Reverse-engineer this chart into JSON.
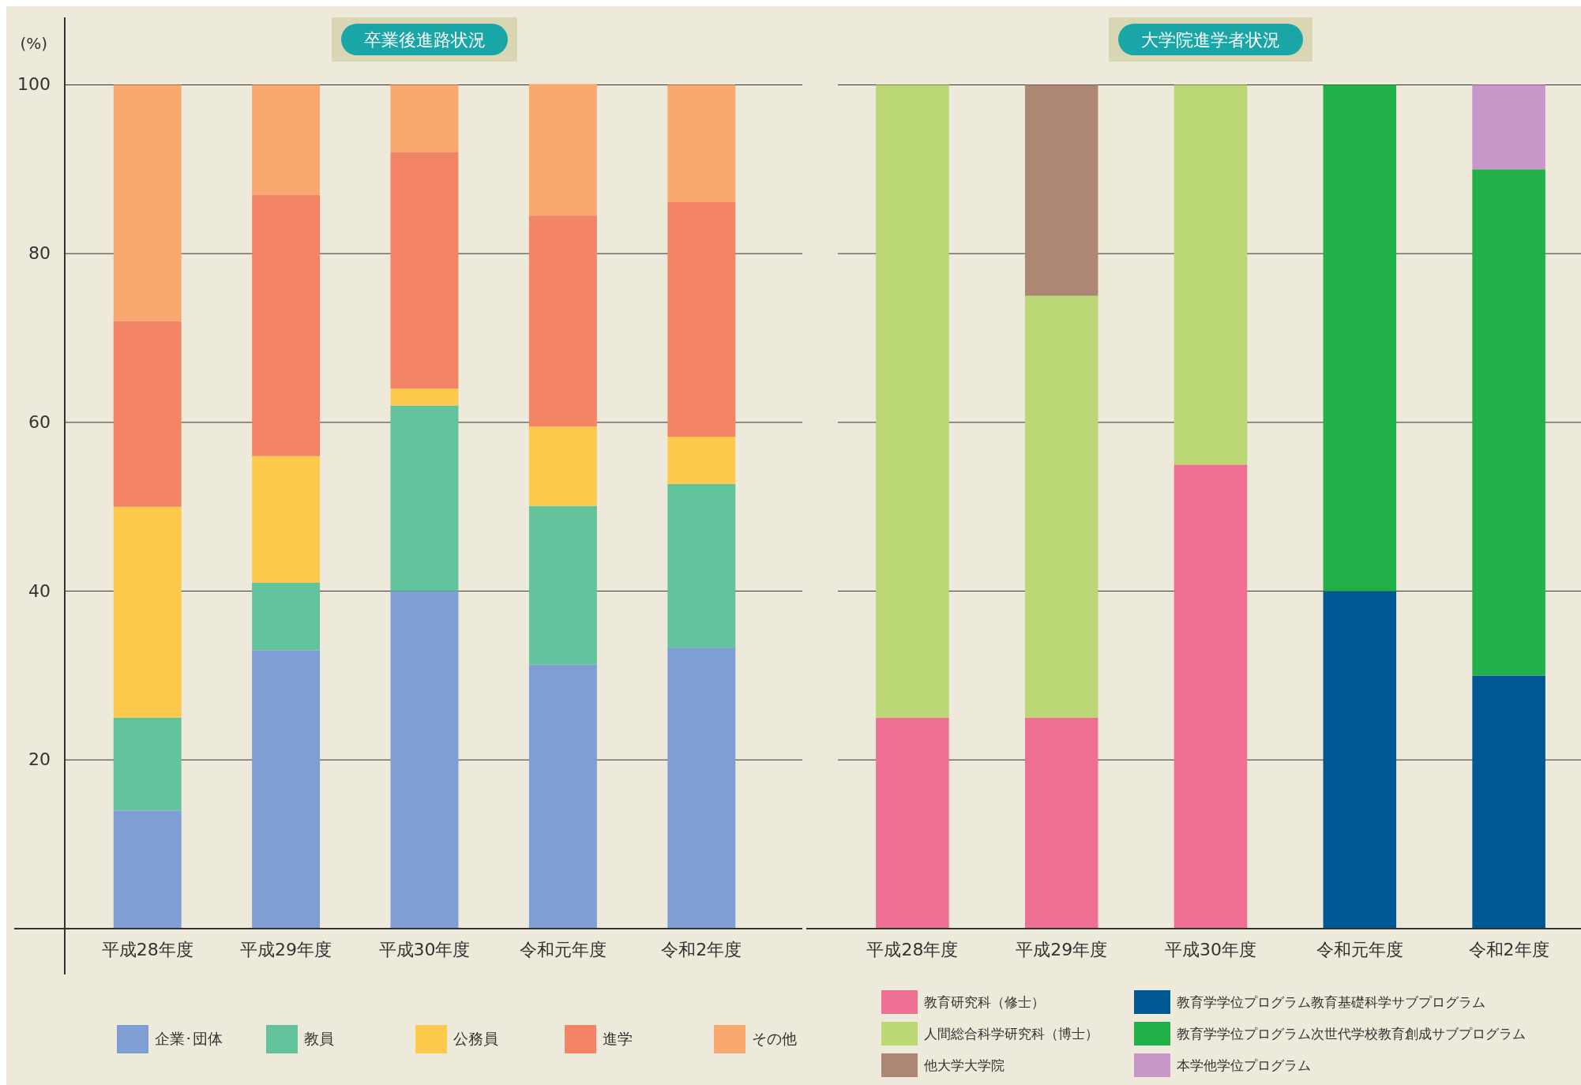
{
  "chart_data": [
    {
      "type": "bar",
      "title": "卒業後進路状況",
      "ylabel": "(%)",
      "stacked": true,
      "grid": "y",
      "legend": "bottom",
      "ylim": [
        0,
        108
      ],
      "yticks": [
        20,
        40,
        60,
        80,
        100
      ],
      "categories": [
        "平成28年度",
        "平成29年度",
        "平成30年度",
        "令和元年度",
        "令和2年度"
      ],
      "series": [
        {
          "name": "企業･団体",
          "color": "#7f9ed4",
          "values": [
            14,
            33,
            40,
            31.3,
            33.3
          ]
        },
        {
          "name": "教員",
          "color": "#63c39c",
          "values": [
            11,
            8,
            22,
            18.8,
            19.4
          ]
        },
        {
          "name": "公務員",
          "color": "#fdca4e",
          "values": [
            25,
            15,
            2,
            9.4,
            5.6
          ]
        },
        {
          "name": "進学",
          "color": "#f48466",
          "values": [
            22,
            31,
            28,
            25,
            27.8
          ]
        },
        {
          "name": "その他",
          "color": "#f9a870",
          "values": [
            28,
            13,
            8,
            15.6,
            13.9
          ]
        }
      ]
    },
    {
      "type": "bar",
      "title": "大学院進学者状況",
      "stacked": true,
      "grid": "y",
      "legend": "bottom",
      "tick_labels": "x",
      "ylim": [
        0,
        108
      ],
      "yticks": [
        20,
        40,
        60,
        80,
        100
      ],
      "categories": [
        "平成28年度",
        "平成29年度",
        "平成30年度",
        "令和元年度",
        "令和2年度"
      ],
      "series": [
        {
          "name": "教育研究科（修士）",
          "color": "#ef6f93",
          "values": [
            25,
            25,
            55,
            0,
            0
          ]
        },
        {
          "name": "教育学学位プログラム教育基礎科学サブプログラム",
          "color": "#005893",
          "values": [
            0,
            0,
            0,
            40,
            30
          ]
        },
        {
          "name": "人間総合科学研究科（博士）",
          "color": "#bcd775",
          "values": [
            75,
            50,
            45,
            0,
            0
          ]
        },
        {
          "name": "教育学学位プログラム次世代学校教育創成サブプログラム",
          "color": "#22b04b",
          "values": [
            0,
            0,
            0,
            60,
            60
          ]
        },
        {
          "name": "他大学大学院",
          "color": "#ad8774",
          "values": [
            0,
            25,
            0,
            0,
            0
          ]
        },
        {
          "name": "本学他学位プログラム",
          "color": "#c996c8",
          "values": [
            0,
            0,
            0,
            0,
            10
          ]
        }
      ]
    }
  ]
}
